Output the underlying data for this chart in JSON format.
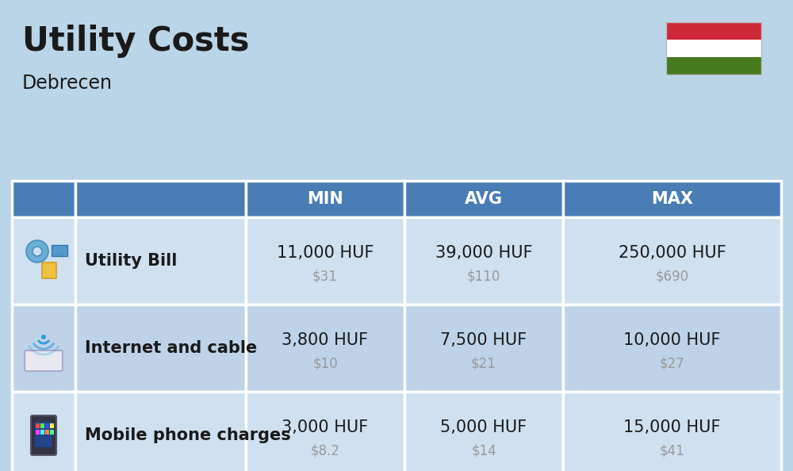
{
  "title": "Utility Costs",
  "subtitle": "Debrecen",
  "background_color": "#bad4e8",
  "header_bg_color": "#4a7db5",
  "header_text_color": "#ffffff",
  "row_bg_color_odd": "#cfe0f0",
  "row_bg_color_even": "#bed3e8",
  "table_border_color": "#ffffff",
  "col_headers": [
    "MIN",
    "AVG",
    "MAX"
  ],
  "rows": [
    {
      "label": "Utility Bill",
      "min_huf": "11,000 HUF",
      "min_usd": "$31",
      "avg_huf": "39,000 HUF",
      "avg_usd": "$110",
      "max_huf": "250,000 HUF",
      "max_usd": "$690"
    },
    {
      "label": "Internet and cable",
      "min_huf": "3,800 HUF",
      "min_usd": "$10",
      "avg_huf": "7,500 HUF",
      "avg_usd": "$21",
      "max_huf": "10,000 HUF",
      "max_usd": "$27"
    },
    {
      "label": "Mobile phone charges",
      "min_huf": "3,000 HUF",
      "min_usd": "$8.2",
      "avg_huf": "5,000 HUF",
      "avg_usd": "$14",
      "max_huf": "15,000 HUF",
      "max_usd": "$41"
    }
  ],
  "flag_colors": [
    "#ce2939",
    "#ffffff",
    "#477a1e"
  ],
  "title_fontsize": 30,
  "subtitle_fontsize": 17,
  "header_fontsize": 15,
  "label_fontsize": 15,
  "value_fontsize": 15,
  "usd_fontsize": 12,
  "usd_color": "#999999",
  "text_color": "#1a1a1a"
}
